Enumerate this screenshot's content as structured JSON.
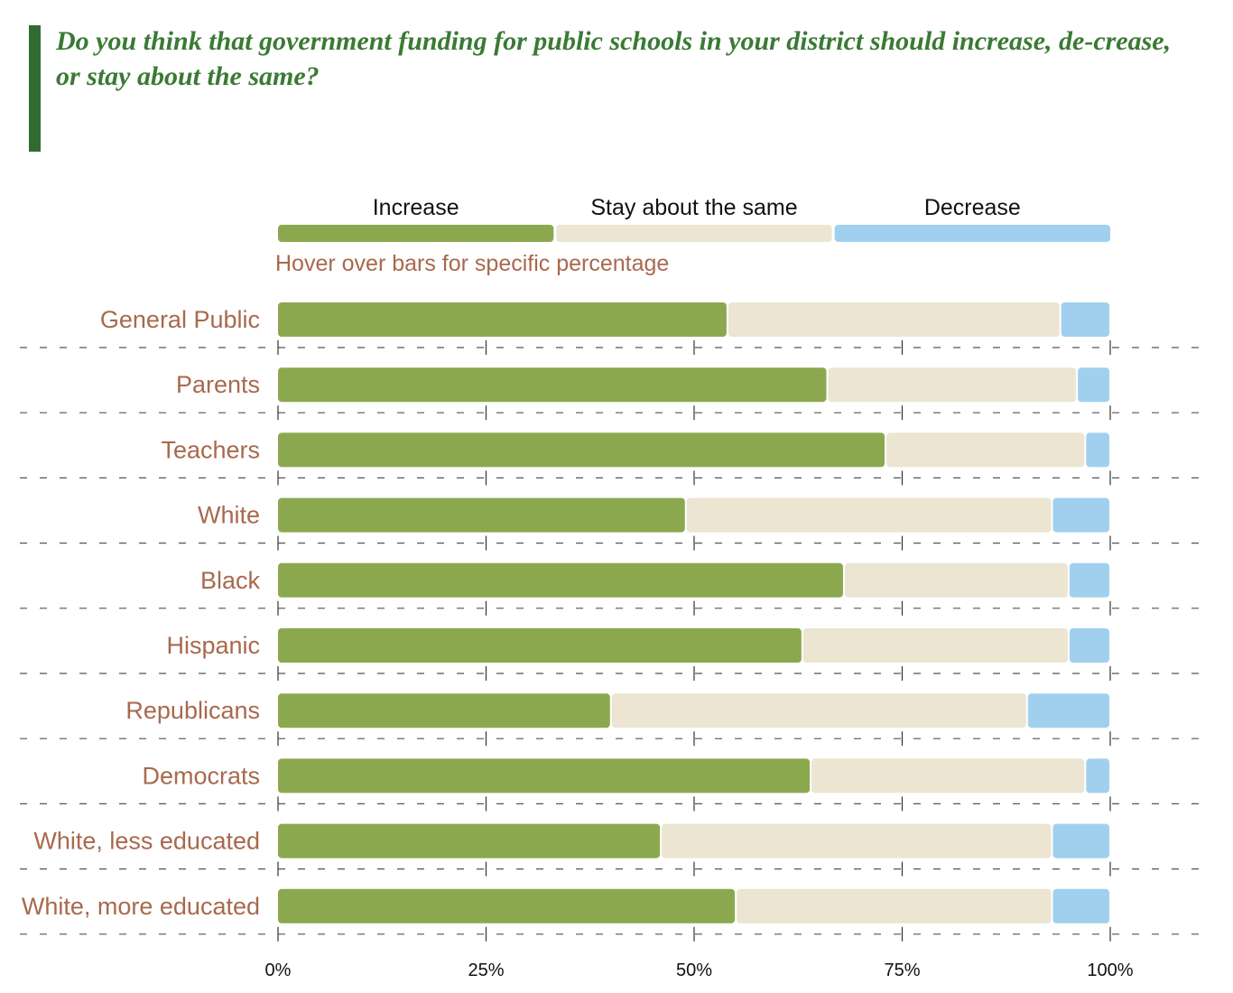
{
  "question": "Do you think that government funding for public schools in your district should increase, de-crease, or stay about the same?",
  "hint": "Hover over bars for specific percentage",
  "colors": {
    "increase": "#8ba84f",
    "same": "#ebe5d1",
    "decrease": "#a0d0ee",
    "label": "#a8694d",
    "title": "#3a7a34",
    "accent": "#2f6b32"
  },
  "chart_data": {
    "type": "bar",
    "orientation": "horizontal",
    "stacked": true,
    "legend": {
      "position": "top",
      "entries": [
        "Increase",
        "Stay about the same",
        "Decrease"
      ]
    },
    "xlim": [
      0,
      100
    ],
    "ticks": [
      "0%",
      "25%",
      "50%",
      "75%",
      "100%"
    ],
    "tick_values": [
      0,
      25,
      50,
      75,
      100
    ],
    "categories": [
      "General Public",
      "Parents",
      "Teachers",
      "White",
      "Black",
      "Hispanic",
      "Republicans",
      "Democrats",
      "White, less educated",
      "White, more educated"
    ],
    "series": [
      {
        "name": "Increase",
        "values": [
          54,
          66,
          73,
          49,
          68,
          63,
          40,
          64,
          46,
          55
        ]
      },
      {
        "name": "Stay about the same",
        "values": [
          40,
          30,
          24,
          44,
          27,
          32,
          50,
          33,
          47,
          38
        ]
      },
      {
        "name": "Decrease",
        "values": [
          6,
          4,
          3,
          7,
          5,
          5,
          10,
          3,
          7,
          7
        ]
      }
    ]
  }
}
